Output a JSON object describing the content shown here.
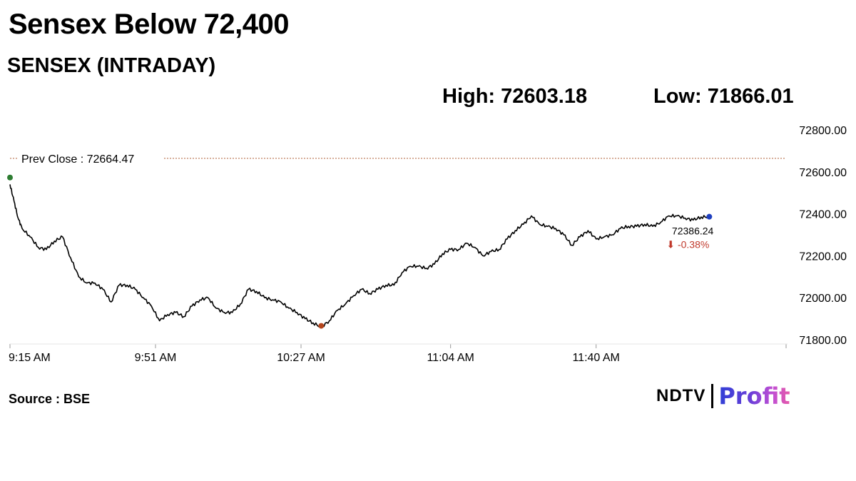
{
  "headline": "Sensex Below 72,400",
  "subheadline": "SENSEX (INTRADAY)",
  "high_label": "High: 72603.18",
  "low_label": "Low: 71866.01",
  "source": "Source : BSE",
  "logo": {
    "brand": "NDTV",
    "product": "Profit"
  },
  "colors": {
    "line": "#000000",
    "prev_close": "#b0603a",
    "open_marker": "#2e7d32",
    "low_marker": "#b5461e",
    "last_marker": "#1f3fbf",
    "down_change": "#c0392b"
  },
  "chart_data": {
    "type": "line",
    "title": "SENSEX (INTRADAY)",
    "xlabel": "",
    "ylabel": "",
    "ylim": [
      71800,
      72850
    ],
    "yticks": [
      "72800.00",
      "72600.00",
      "72400.00",
      "72200.00",
      "72000.00",
      "71800.00"
    ],
    "ytick_values": [
      72800,
      72600,
      72400,
      72200,
      72000,
      71800
    ],
    "xticks": [
      "9:15 AM",
      "9:51 AM",
      "10:27 AM",
      "11:04 AM",
      "11:40 AM"
    ],
    "xtick_minutes": [
      555,
      591,
      627,
      664,
      700
    ],
    "prev_close": {
      "label": "Prev Close : 72664.47",
      "value": 72664.47
    },
    "last": {
      "value_label": "72386.24",
      "change_label": "⬇ -0.38%",
      "value": 72386.24
    },
    "series": [
      {
        "x": [
          "9:15",
          "9:16",
          "9:17",
          "9:18",
          "9:20",
          "9:22",
          "9:24",
          "9:26",
          "9:28",
          "9:30",
          "9:32",
          "9:34",
          "9:36",
          "9:38",
          "9:40",
          "9:42",
          "9:44",
          "9:46",
          "9:48",
          "9:50",
          "9:52",
          "9:54",
          "9:56",
          "9:58",
          "10:00",
          "10:02",
          "10:04",
          "10:06",
          "10:08",
          "10:10",
          "10:12",
          "10:14",
          "10:16",
          "10:18",
          "10:20",
          "10:22",
          "10:24",
          "10:26",
          "10:28",
          "10:30",
          "10:32",
          "10:34",
          "10:36",
          "10:38",
          "10:40",
          "10:42",
          "10:44",
          "10:46",
          "10:48",
          "10:50",
          "10:52",
          "10:54",
          "10:56",
          "10:58",
          "11:00",
          "11:02",
          "11:04",
          "11:06",
          "11:08",
          "11:10",
          "11:12",
          "11:14",
          "11:16",
          "11:18",
          "11:20",
          "11:22",
          "11:24",
          "11:26",
          "11:28",
          "11:30",
          "11:32",
          "11:34",
          "11:36",
          "11:38",
          "11:40",
          "11:42",
          "11:44",
          "11:46",
          "11:48",
          "11:50",
          "11:52",
          "11:54",
          "11:56",
          "11:58",
          "12:00",
          "12:02",
          "12:04",
          "12:06",
          "12:08"
        ],
        "y": [
          72540,
          72460,
          72380,
          72330,
          72290,
          72240,
          72230,
          72270,
          72290,
          72190,
          72100,
          72070,
          72070,
          72040,
          71980,
          72060,
          72060,
          72040,
          72000,
          71960,
          71890,
          71920,
          71930,
          71910,
          71960,
          71990,
          72000,
          71950,
          71930,
          71930,
          71970,
          72040,
          72030,
          72000,
          71990,
          71980,
          71950,
          71930,
          71900,
          71880,
          71860,
          71890,
          71940,
          71970,
          72010,
          72040,
          72020,
          72040,
          72060,
          72060,
          72120,
          72150,
          72150,
          72140,
          72160,
          72210,
          72230,
          72230,
          72260,
          72240,
          72200,
          72220,
          72230,
          72280,
          72320,
          72350,
          72390,
          72350,
          72340,
          72330,
          72300,
          72250,
          72290,
          72320,
          72280,
          72290,
          72300,
          72330,
          72340,
          72340,
          72350,
          72340,
          72360,
          72390,
          72390,
          72380,
          72370,
          72385,
          72386.24
        ]
      }
    ],
    "markers": [
      {
        "name": "open",
        "x": "9:15",
        "y": 72573
      },
      {
        "name": "day-low",
        "x": "10:32",
        "y": 71866.01
      },
      {
        "name": "last",
        "x": "12:08",
        "y": 72386.24
      }
    ]
  }
}
